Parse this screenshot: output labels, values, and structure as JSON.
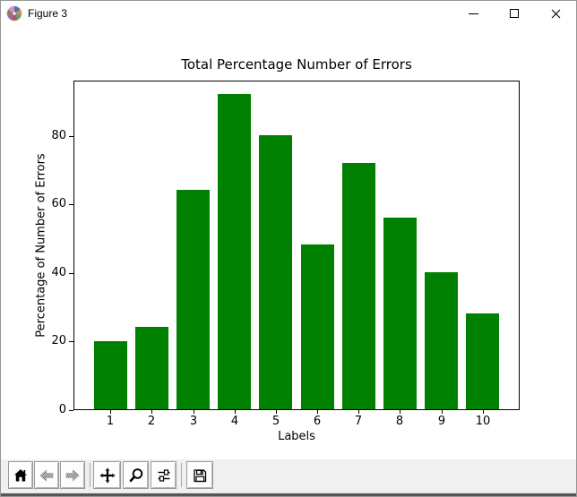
{
  "window": {
    "title": "Figure 3",
    "app_icon": "matplotlib-logo",
    "controls": [
      "minimize",
      "maximize",
      "close"
    ]
  },
  "chart_data": {
    "type": "bar",
    "title": "Total Percentage Number of Errors",
    "xlabel": "Labels",
    "ylabel": "Percentage of Number of Errors",
    "categories": [
      "1",
      "2",
      "3",
      "4",
      "5",
      "6",
      "7",
      "8",
      "9",
      "10"
    ],
    "values": [
      20,
      24,
      64,
      92,
      80,
      48,
      72,
      56,
      40,
      28
    ],
    "bar_color": "#008000",
    "bar_width": 0.8,
    "yticks": [
      0,
      20,
      40,
      60,
      80
    ],
    "ylim": [
      0,
      96.2
    ],
    "xlim": [
      0.11,
      10.89
    ],
    "grid": false,
    "legend": "none"
  },
  "toolbar": {
    "buttons": [
      {
        "name": "home",
        "enabled": true
      },
      {
        "name": "back",
        "enabled": false
      },
      {
        "name": "forward",
        "enabled": false
      },
      {
        "name": "pan",
        "enabled": true
      },
      {
        "name": "zoom-to-rect",
        "enabled": true
      },
      {
        "name": "configure-subplots",
        "enabled": true
      },
      {
        "name": "save",
        "enabled": true
      }
    ]
  }
}
